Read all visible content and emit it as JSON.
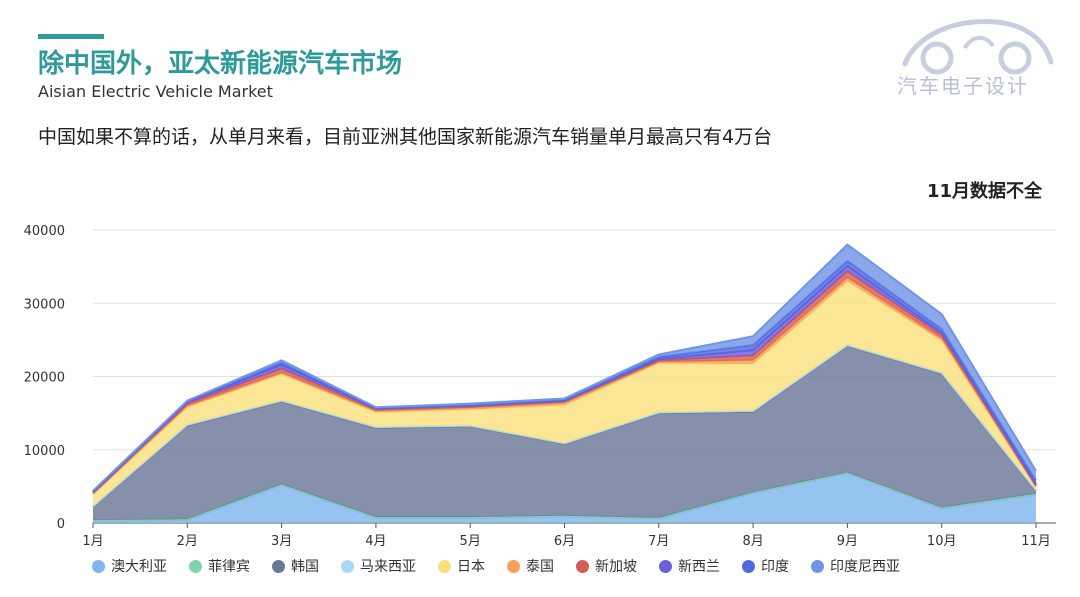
{
  "header": {
    "title": "除中国外，亚太新能源汽车市场",
    "subtitle": "Aisian Electric Vehicle Market",
    "headline": "中国如果不算的话，从单月来看，目前亚洲其他国家新能源汽车销量单月最高只有4万台",
    "note": "11月数据不全"
  },
  "logo": {
    "text": "汽车电子设计"
  },
  "chart_data": {
    "type": "area",
    "stacked": true,
    "categories": [
      "1月",
      "2月",
      "3月",
      "4月",
      "5月",
      "6月",
      "7月",
      "8月",
      "9月",
      "10月",
      "11月"
    ],
    "ylim": [
      0,
      40000
    ],
    "yticks": [
      0,
      10000,
      20000,
      30000,
      40000
    ],
    "grid": true,
    "legend_position": "bottom",
    "series": [
      {
        "name": "澳大利亚",
        "color": "#80b6ee",
        "values": [
          300,
          400,
          5200,
          700,
          700,
          900,
          600,
          4100,
          6800,
          2000,
          3900
        ]
      },
      {
        "name": "菲律宾",
        "color": "#7fd4ac",
        "values": [
          100,
          100,
          100,
          100,
          100,
          100,
          100,
          100,
          100,
          100,
          100
        ]
      },
      {
        "name": "韩国",
        "color": "#6b7797",
        "values": [
          1800,
          12800,
          11300,
          12200,
          12400,
          9800,
          14300,
          11000,
          17300,
          18300,
          400
        ]
      },
      {
        "name": "马来西亚",
        "color": "#a8d8f5",
        "values": [
          100,
          100,
          100,
          100,
          100,
          100,
          100,
          100,
          100,
          100,
          100
        ]
      },
      {
        "name": "日本",
        "color": "#f9e07e",
        "values": [
          1600,
          2400,
          3600,
          2000,
          2200,
          5200,
          6700,
          6400,
          8700,
          4400,
          400
        ]
      },
      {
        "name": "泰国",
        "color": "#f5a05b",
        "values": [
          100,
          200,
          200,
          200,
          200,
          300,
          200,
          500,
          500,
          300,
          100
        ]
      },
      {
        "name": "新加坡",
        "color": "#d65a55",
        "values": [
          100,
          300,
          600,
          200,
          200,
          200,
          200,
          700,
          900,
          500,
          100
        ]
      },
      {
        "name": "新西兰",
        "color": "#6a5fe0",
        "values": [
          100,
          200,
          500,
          100,
          100,
          100,
          200,
          700,
          700,
          300,
          200
        ]
      },
      {
        "name": "印度",
        "color": "#4f6be0",
        "values": [
          100,
          100,
          300,
          100,
          100,
          100,
          300,
          700,
          700,
          500,
          500
        ]
      },
      {
        "name": "印度尼西亚",
        "color": "#7195e6",
        "values": [
          100,
          100,
          300,
          100,
          200,
          200,
          300,
          1200,
          2200,
          2000,
          1300
        ]
      }
    ]
  }
}
